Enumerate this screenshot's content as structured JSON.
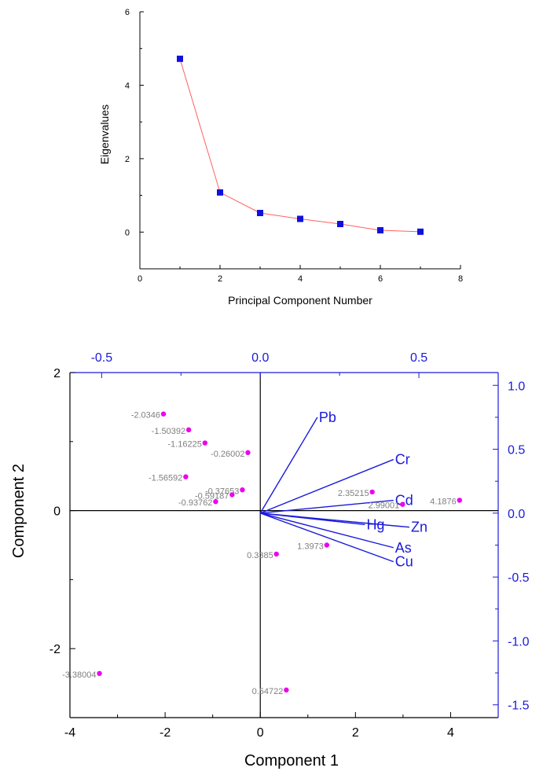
{
  "chart_data": [
    {
      "type": "line",
      "title": "",
      "xlabel": "Principal Component Number",
      "ylabel": "Eigenvalues",
      "xlim": [
        0,
        8
      ],
      "ylim": [
        -1,
        6
      ],
      "xticks": [
        0,
        2,
        4,
        6,
        8
      ],
      "yticks": [
        0,
        2,
        4,
        6
      ],
      "series": [
        {
          "x": [
            1,
            2,
            3,
            4,
            5,
            6,
            7
          ],
          "y": [
            4.72,
            1.08,
            0.52,
            0.36,
            0.22,
            0.05,
            0.01
          ],
          "line_color": "#ff6060",
          "marker": "square",
          "marker_color": "#1010e0"
        }
      ],
      "grid": false
    },
    {
      "type": "scatter",
      "title": "",
      "xlabel": "Component 1",
      "ylabel": "Component 2",
      "xlim": [
        -4,
        5
      ],
      "ylim": [
        -3,
        2
      ],
      "xticks": [
        -4,
        -2,
        0,
        2,
        4
      ],
      "yticks": [
        -2,
        0,
        2
      ],
      "top_axis": {
        "lim": [
          -0.6,
          0.75
        ],
        "ticks": [
          "-0.5",
          "0.0",
          "0.5"
        ],
        "values": [
          -0.5,
          0.0,
          0.5
        ],
        "color": "#1a1adb"
      },
      "right_axis": {
        "lim": [
          -1.6,
          1.1
        ],
        "ticks": [
          "1.0",
          "0.5",
          "0.0",
          "-0.5",
          "-1.0",
          "-1.5"
        ],
        "values": [
          1.0,
          0.5,
          0.0,
          -0.5,
          -1.0,
          -1.5
        ],
        "color": "#1a1adb"
      },
      "scores": {
        "color": "#ee00ee",
        "points": [
          {
            "x": -2.0346,
            "y": 1.4,
            "label": "-2.0346"
          },
          {
            "x": -1.50392,
            "y": 1.17,
            "label": "-1.50392"
          },
          {
            "x": -1.16225,
            "y": 0.98,
            "label": "-1.16225"
          },
          {
            "x": -0.26002,
            "y": 0.84,
            "label": "-0.26002"
          },
          {
            "x": -1.56592,
            "y": 0.49,
            "label": "-1.56592"
          },
          {
            "x": -0.37653,
            "y": 0.3,
            "label": "-0.37653"
          },
          {
            "x": -0.59187,
            "y": 0.23,
            "label": "-0.59187"
          },
          {
            "x": -0.93762,
            "y": 0.13,
            "label": "-0.93762"
          },
          {
            "x": 2.35215,
            "y": 0.27,
            "label": "2.35215"
          },
          {
            "x": 2.99001,
            "y": 0.09,
            "label": "2.99001"
          },
          {
            "x": 4.1876,
            "y": 0.15,
            "label": "4.1876"
          },
          {
            "x": 1.3973,
            "y": -0.5,
            "label": "1.3973"
          },
          {
            "x": 0.3385,
            "y": -0.63,
            "label": "0.3385"
          },
          {
            "x": -3.38004,
            "y": -2.36,
            "label": "-3.38004"
          },
          {
            "x": 0.54722,
            "y": -2.6,
            "label": "0.54722"
          }
        ]
      },
      "loadings": {
        "color": "#1a1adb",
        "vectors": [
          {
            "name": "Pb",
            "x": 0.18,
            "y": 0.75
          },
          {
            "name": "Cr",
            "x": 0.42,
            "y": 0.42
          },
          {
            "name": "Cd",
            "x": 0.42,
            "y": 0.1
          },
          {
            "name": "Hg",
            "x": 0.33,
            "y": -0.09
          },
          {
            "name": "Zn",
            "x": 0.47,
            "y": -0.11
          },
          {
            "name": "As",
            "x": 0.42,
            "y": -0.27
          },
          {
            "name": "Cu",
            "x": 0.42,
            "y": -0.38
          }
        ]
      },
      "grid": false
    }
  ]
}
